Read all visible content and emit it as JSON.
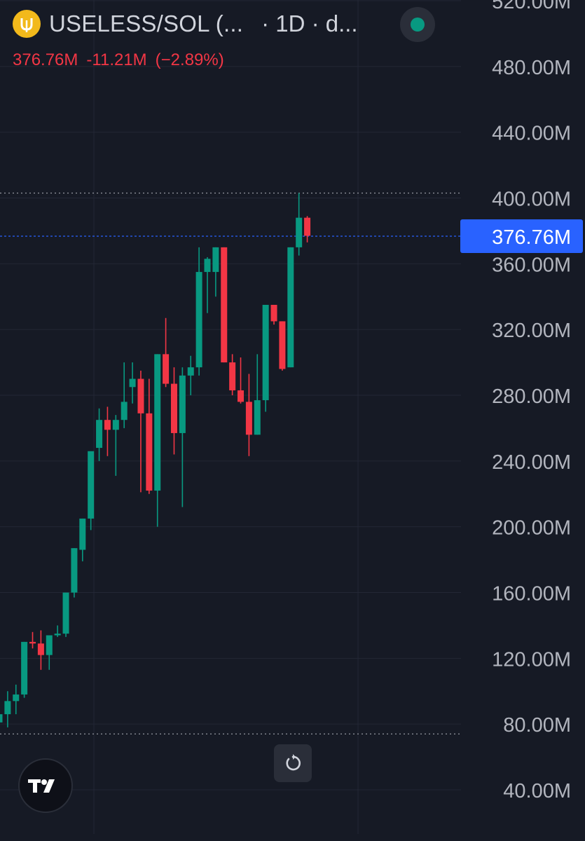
{
  "header": {
    "symbol": "USELESS/SOL (...",
    "interval": "· 1D · d...",
    "last_value": "376.76M",
    "change": "-11.21M",
    "change_pct": "(−2.89%)",
    "change_color": "#f23645",
    "status_color": "#089981",
    "token_icon": "useless-coin-icon",
    "reset_icon": "reset-rotate-icon",
    "brand_icon": "tradingview-logo-icon"
  },
  "chart_data": {
    "type": "candlestick",
    "interval": "1D",
    "y_unit": "M",
    "ylim": [
      30,
      530
    ],
    "y_ticks": [
      "520.00M",
      "480.00M",
      "440.00M",
      "400.00M",
      "360.00M",
      "320.00M",
      "280.00M",
      "240.00M",
      "200.00M",
      "160.00M",
      "120.00M",
      "80.00M",
      "40.00M"
    ],
    "current_price_label": "376.76M",
    "dotted_levels": [
      403,
      74
    ],
    "colors": {
      "up": "#089981",
      "down": "#f23645",
      "current": "#2962ff"
    },
    "candles": [
      {
        "o": 81,
        "h": 95,
        "l": 75,
        "c": 86
      },
      {
        "o": 86,
        "h": 100,
        "l": 78,
        "c": 94
      },
      {
        "o": 94,
        "h": 104,
        "l": 86,
        "c": 98
      },
      {
        "o": 98,
        "h": 130,
        "l": 96,
        "c": 130
      },
      {
        "o": 130,
        "h": 136,
        "l": 126,
        "c": 129
      },
      {
        "o": 129,
        "h": 137,
        "l": 113,
        "c": 122
      },
      {
        "o": 122,
        "h": 133,
        "l": 113,
        "c": 134
      },
      {
        "o": 134,
        "h": 140,
        "l": 133,
        "c": 135
      },
      {
        "o": 135,
        "h": 160,
        "l": 133,
        "c": 160
      },
      {
        "o": 160,
        "h": 187,
        "l": 157,
        "c": 187
      },
      {
        "o": 186,
        "h": 205,
        "l": 179,
        "c": 205
      },
      {
        "o": 205,
        "h": 245,
        "l": 198,
        "c": 246
      },
      {
        "o": 248,
        "h": 272,
        "l": 240,
        "c": 265
      },
      {
        "o": 265,
        "h": 273,
        "l": 243,
        "c": 259
      },
      {
        "o": 259,
        "h": 268,
        "l": 231,
        "c": 265
      },
      {
        "o": 265,
        "h": 300,
        "l": 260,
        "c": 276
      },
      {
        "o": 285,
        "h": 300,
        "l": 275,
        "c": 290
      },
      {
        "o": 290,
        "h": 295,
        "l": 221,
        "c": 269
      },
      {
        "o": 269,
        "h": 290,
        "l": 220,
        "c": 222
      },
      {
        "o": 222,
        "h": 305,
        "l": 200,
        "c": 305
      },
      {
        "o": 305,
        "h": 327,
        "l": 285,
        "c": 287
      },
      {
        "o": 287,
        "h": 297,
        "l": 244,
        "c": 257
      },
      {
        "o": 257,
        "h": 297,
        "l": 212,
        "c": 292
      },
      {
        "o": 292,
        "h": 304,
        "l": 280,
        "c": 297
      },
      {
        "o": 297,
        "h": 370,
        "l": 292,
        "c": 355
      },
      {
        "o": 355,
        "h": 364,
        "l": 330,
        "c": 363
      },
      {
        "o": 355,
        "h": 370,
        "l": 340,
        "c": 370
      },
      {
        "o": 370,
        "h": 370,
        "l": 300,
        "c": 300
      },
      {
        "o": 300,
        "h": 305,
        "l": 280,
        "c": 283
      },
      {
        "o": 283,
        "h": 303,
        "l": 275,
        "c": 276
      },
      {
        "o": 276,
        "h": 293,
        "l": 243,
        "c": 256
      },
      {
        "o": 256,
        "h": 305,
        "l": 256,
        "c": 277
      },
      {
        "o": 277,
        "h": 334,
        "l": 270,
        "c": 335
      },
      {
        "o": 335,
        "h": 335,
        "l": 323,
        "c": 325
      },
      {
        "o": 325,
        "h": 325,
        "l": 295,
        "c": 296
      },
      {
        "o": 297,
        "h": 370,
        "l": 297,
        "c": 370
      },
      {
        "o": 370,
        "h": 403,
        "l": 365,
        "c": 388
      },
      {
        "o": 388,
        "h": 389,
        "l": 373,
        "c": 377
      }
    ]
  }
}
